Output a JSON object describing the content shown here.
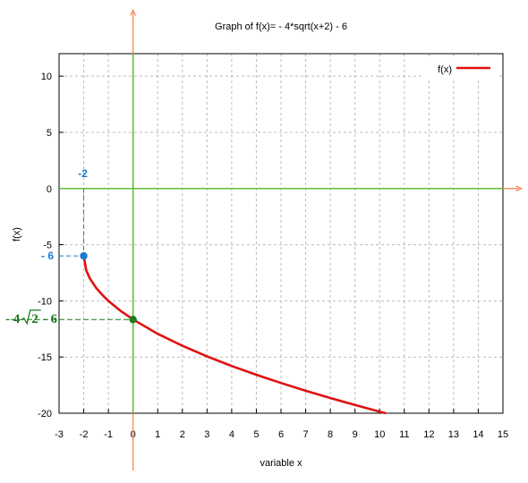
{
  "chart_data": {
    "type": "line",
    "title": "Graph of f(x)= - 4*sqrt(x+2) - 6",
    "xlabel": "variable x",
    "ylabel": "f(x)",
    "xlim": [
      -3,
      15
    ],
    "ylim": [
      -20,
      12
    ],
    "x_ticks": [
      -3,
      -2,
      -1,
      0,
      1,
      2,
      3,
      4,
      5,
      6,
      7,
      8,
      9,
      10,
      11,
      12,
      13,
      14,
      15
    ],
    "y_ticks": [
      10,
      5,
      0,
      -5,
      -10,
      -15,
      -20
    ],
    "grid": true,
    "legend_position": "top-right",
    "series": [
      {
        "name": "f(x)",
        "color": "#e01010",
        "x": [
          -2,
          -1.9,
          -1.75,
          -1.5,
          -1.25,
          -1,
          -0.5,
          0,
          1,
          2,
          3,
          4,
          5,
          6,
          7,
          8,
          9,
          10,
          10.25
        ],
        "y": [
          -6,
          -7.26,
          -8,
          -8.83,
          -9.46,
          -10,
          -10.9,
          -11.66,
          -12.93,
          -14,
          -14.94,
          -15.8,
          -16.58,
          -17.31,
          -18,
          -18.65,
          -19.27,
          -19.86,
          -20
        ]
      }
    ],
    "annotations": {
      "x_marker": "-2",
      "y_marker": "- 6",
      "intercept_prefix": "- 4",
      "intercept_radicand": "2",
      "intercept_suffix": "- 6",
      "marked_points": [
        {
          "x": -2,
          "y": -6,
          "color": "#1e78d2"
        },
        {
          "x": 0,
          "y": -11.66,
          "color": "#1d7a1d"
        }
      ]
    },
    "colors": {
      "curve": "#e01010",
      "axes": "#66bb33",
      "arrows": "#f08050",
      "blue_annotation": "#1e78d2",
      "green_annotation": "#1d7a1d",
      "grid": "#bbbbbb"
    }
  }
}
